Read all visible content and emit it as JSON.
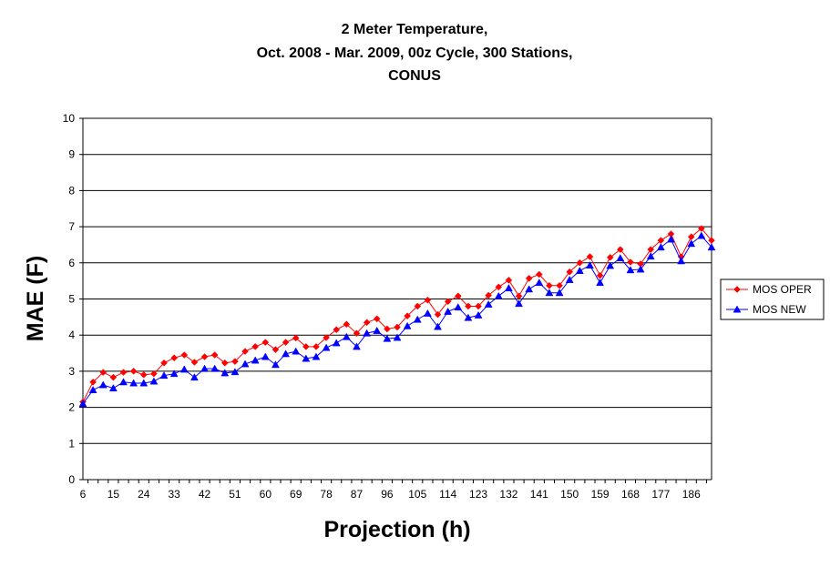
{
  "chart_data": {
    "type": "line",
    "title_lines": [
      "2 Meter Temperature,",
      "Oct. 2008 - Mar. 2009, 00z Cycle, 300 Stations,",
      "CONUS"
    ],
    "xlabel": "Projection (h)",
    "ylabel": "MAE (F)",
    "ylim": [
      0,
      10
    ],
    "yticks": [
      "0",
      "1",
      "2",
      "3",
      "4",
      "5",
      "6",
      "7",
      "8",
      "9",
      "10"
    ],
    "grid": "horizontal",
    "legend_position": "right",
    "x": [
      6,
      9,
      12,
      15,
      18,
      21,
      24,
      27,
      30,
      33,
      36,
      39,
      42,
      45,
      48,
      51,
      54,
      57,
      60,
      63,
      66,
      69,
      72,
      75,
      78,
      81,
      84,
      87,
      90,
      93,
      96,
      99,
      102,
      105,
      108,
      111,
      114,
      117,
      120,
      123,
      126,
      129,
      132,
      135,
      138,
      141,
      144,
      147,
      150,
      153,
      156,
      159,
      162,
      165,
      168,
      171,
      174,
      177,
      180,
      183,
      186,
      189,
      192
    ],
    "xtick_labels": [
      "6",
      "15",
      "24",
      "33",
      "42",
      "51",
      "60",
      "69",
      "78",
      "87",
      "96",
      "105",
      "114",
      "123",
      "132",
      "141",
      "150",
      "159",
      "168",
      "177",
      "186"
    ],
    "series": [
      {
        "name": "MOS OPER",
        "color": "#ff0000",
        "marker": "diamond",
        "values": [
          2.15,
          2.7,
          2.97,
          2.83,
          2.97,
          3.0,
          2.9,
          2.93,
          3.23,
          3.37,
          3.45,
          3.25,
          3.4,
          3.45,
          3.23,
          3.27,
          3.55,
          3.68,
          3.8,
          3.6,
          3.8,
          3.92,
          3.68,
          3.68,
          3.93,
          4.15,
          4.3,
          4.05,
          4.35,
          4.45,
          4.17,
          4.22,
          4.53,
          4.8,
          4.97,
          4.57,
          4.93,
          5.08,
          4.8,
          4.8,
          5.1,
          5.33,
          5.52,
          5.08,
          5.57,
          5.68,
          5.37,
          5.37,
          5.75,
          6.0,
          6.17,
          5.65,
          6.15,
          6.37,
          6.02,
          5.97,
          6.37,
          6.62,
          6.8,
          6.17,
          6.72,
          6.95,
          6.62
        ]
      },
      {
        "name": "MOS NEW",
        "color": "#0000ff",
        "marker": "triangle",
        "values": [
          2.1,
          2.48,
          2.62,
          2.53,
          2.7,
          2.67,
          2.67,
          2.72,
          2.88,
          2.93,
          3.05,
          2.83,
          3.07,
          3.07,
          2.95,
          2.98,
          3.2,
          3.3,
          3.4,
          3.18,
          3.48,
          3.55,
          3.35,
          3.4,
          3.65,
          3.78,
          3.95,
          3.68,
          4.05,
          4.12,
          3.9,
          3.93,
          4.25,
          4.43,
          4.6,
          4.23,
          4.65,
          4.77,
          4.48,
          4.55,
          4.85,
          5.08,
          5.3,
          4.87,
          5.27,
          5.45,
          5.17,
          5.17,
          5.53,
          5.78,
          5.93,
          5.45,
          5.92,
          6.13,
          5.8,
          5.82,
          6.18,
          6.43,
          6.65,
          6.05,
          6.53,
          6.75,
          6.43
        ]
      }
    ]
  }
}
